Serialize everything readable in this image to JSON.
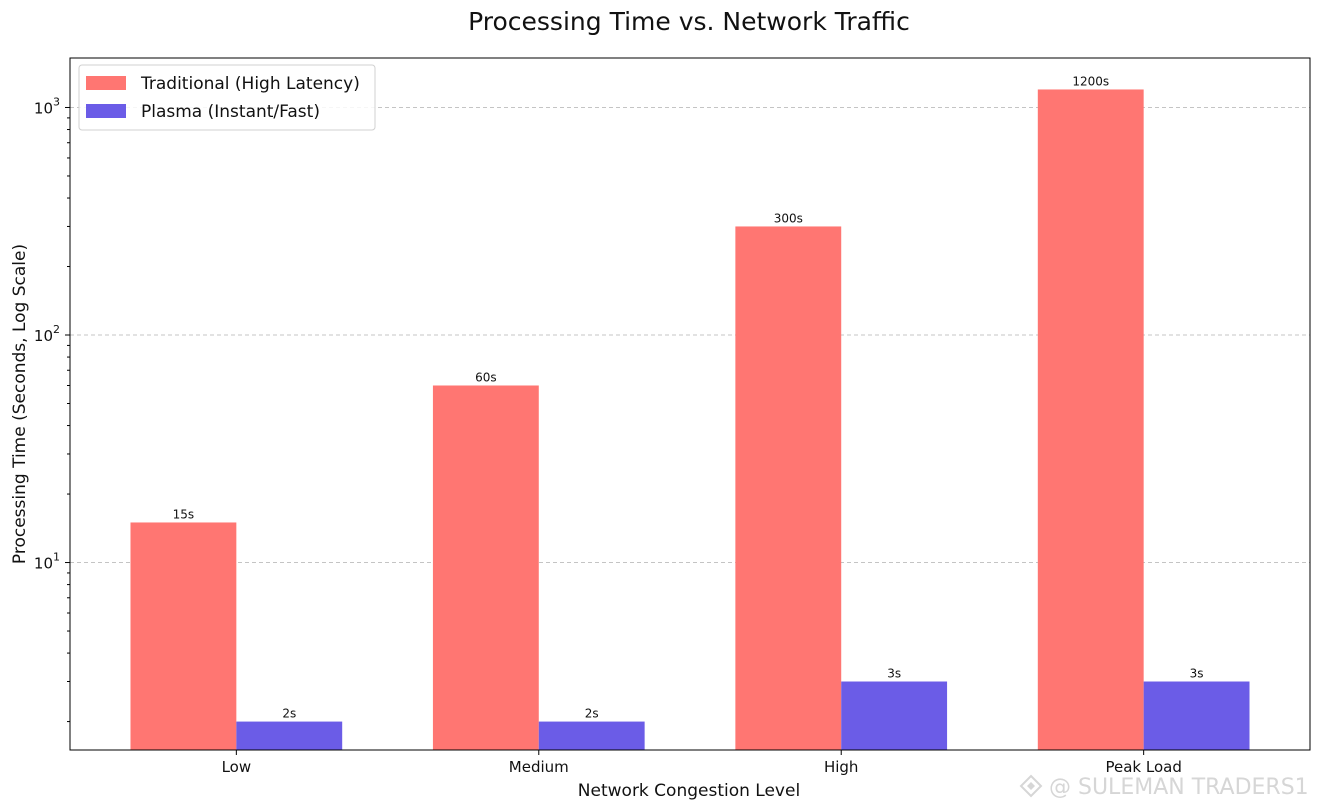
{
  "chart_data": {
    "type": "bar",
    "title": "Processing Time vs. Network Traffic",
    "xlabel": "Network Congestion Level",
    "ylabel": "Processing Time (Seconds, Log Scale)",
    "yscale": "log",
    "ylim": [
      1.5,
      1650
    ],
    "yticks": [
      {
        "value": 10,
        "base": "10",
        "exp": "1"
      },
      {
        "value": 100,
        "base": "10",
        "exp": "2"
      },
      {
        "value": 1000,
        "base": "10",
        "exp": "3"
      }
    ],
    "grid": "y-dashed",
    "legend_position": "top-left",
    "categories": [
      "Low",
      "Medium",
      "High",
      "Peak Load"
    ],
    "series": [
      {
        "name": "Traditional (High Latency)",
        "color": "#ff7672",
        "values": [
          15,
          60,
          300,
          1200
        ],
        "labels": [
          "15s",
          "60s",
          "300s",
          "1200s"
        ]
      },
      {
        "name": "Plasma (Instant/Fast)",
        "color": "#6b5ce7",
        "values": [
          2,
          2,
          3,
          3
        ],
        "labels": [
          "2s",
          "2s",
          "3s",
          "3s"
        ]
      }
    ]
  },
  "watermark": {
    "text": "@ SULEMAN TRADERS1",
    "icon": "diamond-logo-icon"
  }
}
